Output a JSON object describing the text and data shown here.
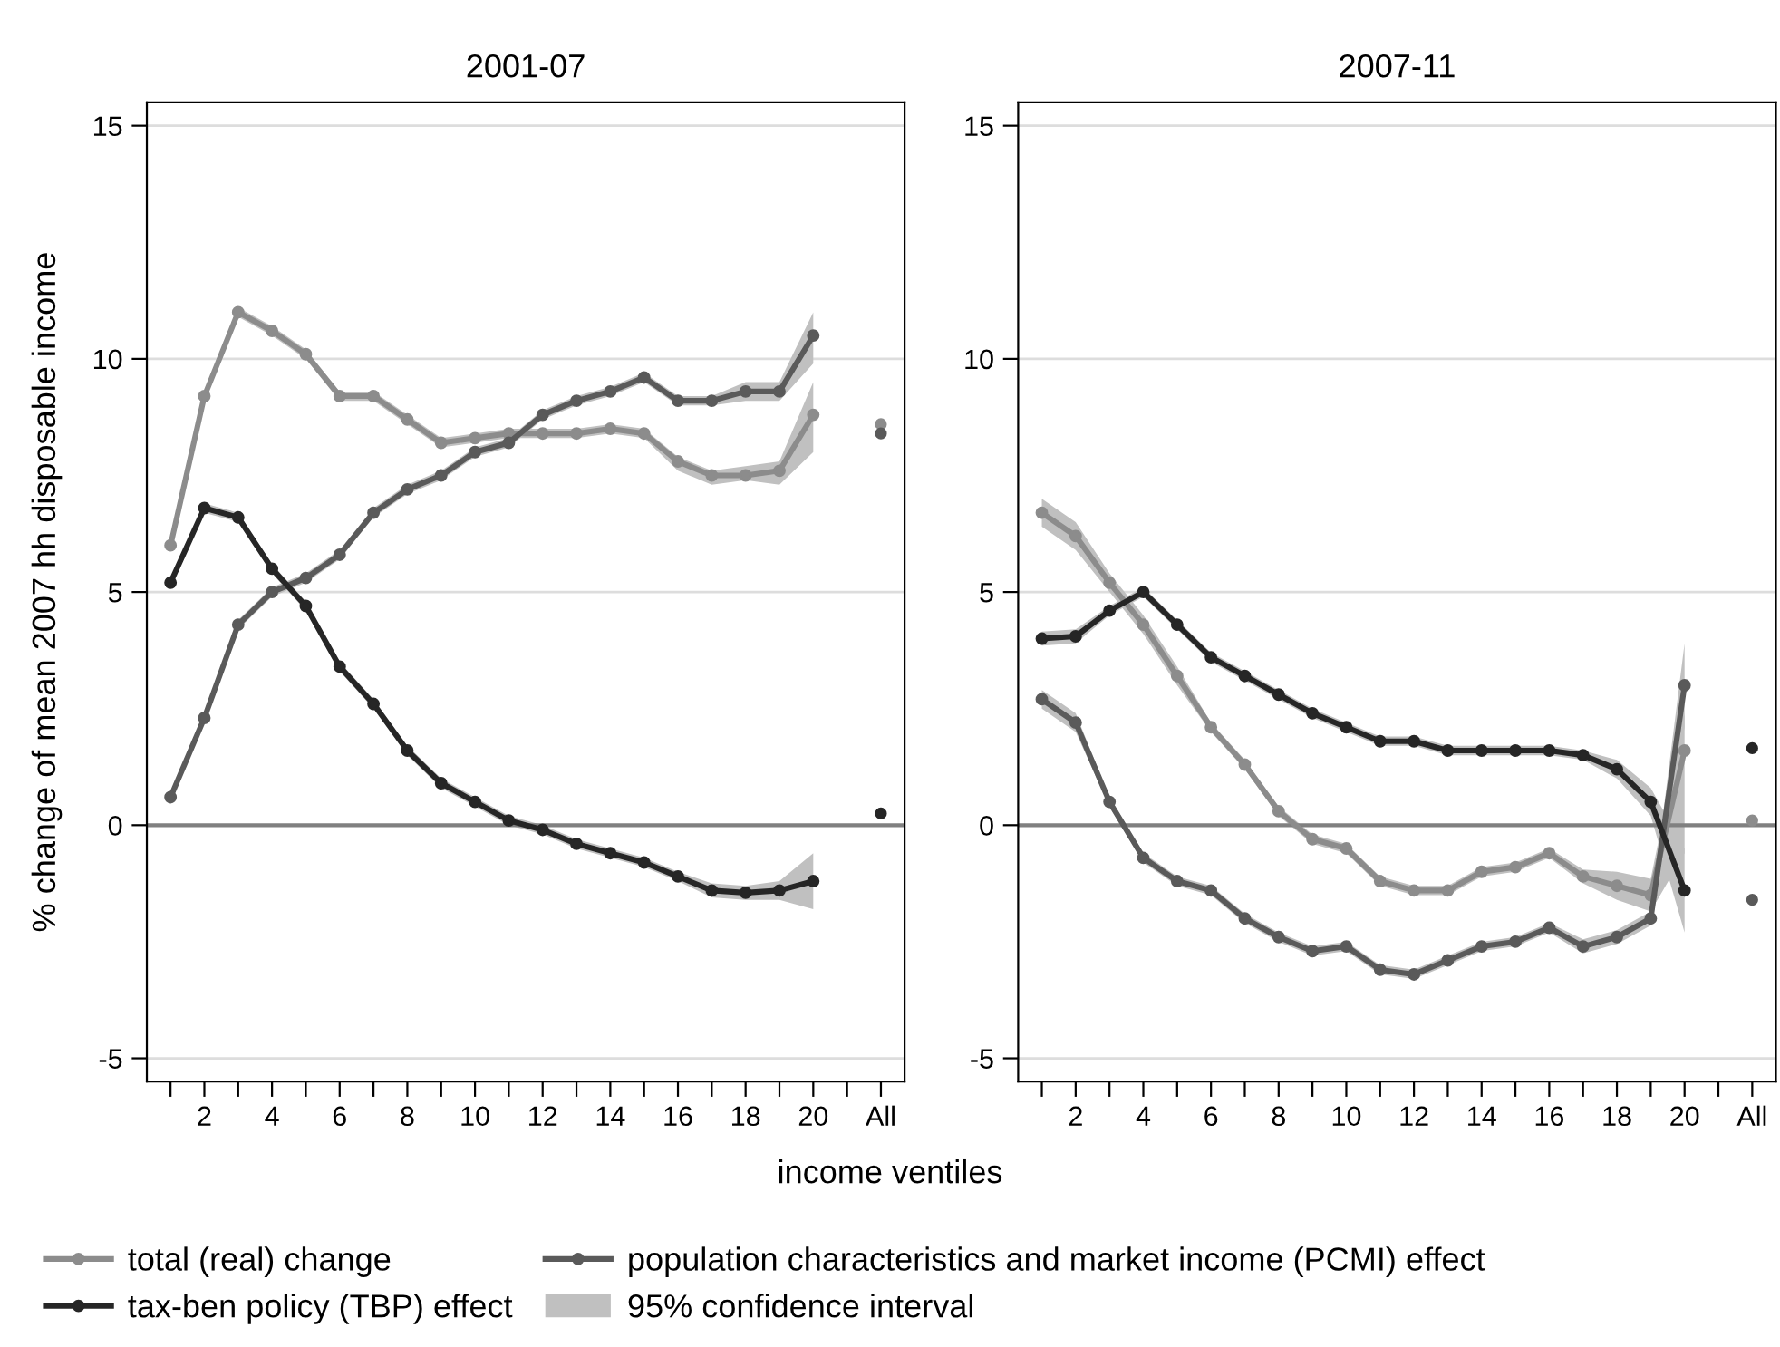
{
  "chart_data": [
    {
      "type": "line",
      "title": "2001-07",
      "ylabel": "% change of mean 2007 hh disposable income",
      "xlabel": "income ventiles",
      "xlim": [
        0.3,
        22.7
      ],
      "xticks": [
        {
          "value": 1,
          "label": null
        },
        2,
        {
          "value": 3,
          "label": null
        },
        4,
        {
          "value": 5,
          "label": null
        },
        6,
        {
          "value": 7,
          "label": null
        },
        8,
        {
          "value": 9,
          "label": null
        },
        10,
        {
          "value": 11,
          "label": null
        },
        12,
        {
          "value": 13,
          "label": null
        },
        14,
        {
          "value": 15,
          "label": null
        },
        16,
        {
          "value": 17,
          "label": null
        },
        18,
        {
          "value": 19,
          "label": null
        },
        20,
        {
          "value": 21,
          "label": null
        },
        {
          "value": 22,
          "label": "All"
        }
      ],
      "ylim": [
        -5.5,
        15.5
      ],
      "yticks": [
        -5,
        0,
        5,
        10,
        15
      ],
      "grid": "y",
      "legend": "bottom",
      "marker": "circle",
      "ref_lines": [
        {
          "axis": "y",
          "value": 0,
          "color": "#808080"
        }
      ],
      "series": [
        {
          "name": "total (real) change",
          "color": "#8c8c8c",
          "x": [
            1,
            2,
            3,
            4,
            5,
            6,
            7,
            8,
            9,
            10,
            11,
            12,
            13,
            14,
            15,
            16,
            17,
            18,
            19,
            20
          ],
          "values": [
            6.0,
            9.2,
            11.0,
            10.6,
            10.1,
            9.2,
            9.2,
            8.7,
            8.2,
            8.3,
            8.4,
            8.4,
            8.4,
            8.5,
            8.4,
            7.8,
            7.5,
            7.5,
            7.6,
            8.8
          ],
          "lower": [
            5.9,
            9.1,
            10.9,
            10.5,
            10.0,
            9.1,
            9.1,
            8.6,
            8.1,
            8.2,
            8.3,
            8.3,
            8.3,
            8.4,
            8.3,
            7.6,
            7.3,
            7.4,
            7.3,
            8.0
          ],
          "upper": [
            6.1,
            9.3,
            11.1,
            10.7,
            10.2,
            9.3,
            9.3,
            8.8,
            8.3,
            8.4,
            8.5,
            8.5,
            8.5,
            8.6,
            8.5,
            7.9,
            7.6,
            7.7,
            7.8,
            9.5
          ]
        },
        {
          "name": "population characteristics and market income (PCMI) effect",
          "color": "#5a5a5a",
          "x": [
            1,
            2,
            3,
            4,
            5,
            6,
            7,
            8,
            9,
            10,
            11,
            12,
            13,
            14,
            15,
            16,
            17,
            18,
            19,
            20
          ],
          "values": [
            0.6,
            2.3,
            4.3,
            5.0,
            5.3,
            5.8,
            6.7,
            7.2,
            7.5,
            8.0,
            8.2,
            8.8,
            9.1,
            9.3,
            9.6,
            9.1,
            9.1,
            9.3,
            9.3,
            10.5
          ],
          "lower": [
            0.5,
            2.2,
            4.2,
            4.9,
            5.2,
            5.7,
            6.6,
            7.1,
            7.4,
            7.9,
            8.1,
            8.7,
            9.0,
            9.2,
            9.5,
            9.0,
            9.0,
            9.1,
            9.1,
            9.9
          ],
          "upper": [
            0.7,
            2.4,
            4.4,
            5.1,
            5.4,
            5.9,
            6.8,
            7.3,
            7.6,
            8.1,
            8.3,
            8.9,
            9.2,
            9.4,
            9.7,
            9.2,
            9.2,
            9.5,
            9.5,
            11.0
          ]
        },
        {
          "name": "tax-ben policy (TBP) effect",
          "color": "#262626",
          "x": [
            1,
            2,
            3,
            4,
            5,
            6,
            7,
            8,
            9,
            10,
            11,
            12,
            13,
            14,
            15,
            16,
            17,
            18,
            19,
            20
          ],
          "values": [
            5.2,
            6.8,
            6.6,
            5.5,
            4.7,
            3.4,
            2.6,
            1.6,
            0.9,
            0.5,
            0.1,
            -0.1,
            -0.4,
            -0.6,
            -0.8,
            -1.1,
            -1.4,
            -1.45,
            -1.4,
            -1.2
          ],
          "lower": [
            5.1,
            6.7,
            6.5,
            5.4,
            4.6,
            3.3,
            2.5,
            1.5,
            0.8,
            0.4,
            0.0,
            -0.2,
            -0.5,
            -0.7,
            -0.9,
            -1.2,
            -1.55,
            -1.6,
            -1.6,
            -1.8
          ],
          "upper": [
            5.3,
            6.9,
            6.7,
            5.6,
            4.8,
            3.5,
            2.7,
            1.7,
            1.0,
            0.6,
            0.2,
            0.0,
            -0.3,
            -0.5,
            -0.7,
            -1.0,
            -1.25,
            -1.3,
            -1.2,
            -0.6
          ]
        },
        {
          "type": "scatter",
          "color": "#8c8c8c",
          "x": [
            22
          ],
          "values": [
            8.6
          ]
        },
        {
          "type": "scatter",
          "color": "#5a5a5a",
          "x": [
            22
          ],
          "values": [
            8.4
          ]
        },
        {
          "type": "scatter",
          "color": "#262626",
          "x": [
            22
          ],
          "values": [
            0.25
          ]
        },
        {
          "type": "area",
          "name": "95% confidence interval",
          "color": "#c0c0c0"
        }
      ]
    },
    {
      "type": "line",
      "title": "2007-11",
      "xlim": [
        0.3,
        22.7
      ],
      "xticks": [
        {
          "value": 1,
          "label": null
        },
        2,
        {
          "value": 3,
          "label": null
        },
        4,
        {
          "value": 5,
          "label": null
        },
        6,
        {
          "value": 7,
          "label": null
        },
        8,
        {
          "value": 9,
          "label": null
        },
        10,
        {
          "value": 11,
          "label": null
        },
        12,
        {
          "value": 13,
          "label": null
        },
        14,
        {
          "value": 15,
          "label": null
        },
        16,
        {
          "value": 17,
          "label": null
        },
        18,
        {
          "value": 19,
          "label": null
        },
        20,
        {
          "value": 21,
          "label": null
        },
        {
          "value": 22,
          "label": "All"
        }
      ],
      "ylim": [
        -5.5,
        15.5
      ],
      "yticks": [
        -5,
        0,
        5,
        10,
        15
      ],
      "grid": "y",
      "marker": "circle",
      "ref_lines": [
        {
          "axis": "y",
          "value": 0,
          "color": "#808080"
        }
      ],
      "series": [
        {
          "color": "#8c8c8c",
          "x": [
            1,
            2,
            3,
            4,
            5,
            6,
            7,
            8,
            9,
            10,
            11,
            12,
            13,
            14,
            15,
            16,
            17,
            18,
            19,
            20
          ],
          "values": [
            6.7,
            6.2,
            5.2,
            4.3,
            3.2,
            2.1,
            1.3,
            0.3,
            -0.3,
            -0.5,
            -1.2,
            -1.4,
            -1.4,
            -1.0,
            -0.9,
            -0.6,
            -1.1,
            -1.3,
            -1.5,
            1.6
          ],
          "lower": [
            6.4,
            5.9,
            5.0,
            4.1,
            3.0,
            2.0,
            1.2,
            0.2,
            -0.4,
            -0.6,
            -1.3,
            -1.5,
            -1.5,
            -1.1,
            -1.0,
            -0.7,
            -1.25,
            -1.6,
            -1.85,
            -0.6
          ],
          "upper": [
            7.0,
            6.5,
            5.4,
            4.5,
            3.4,
            2.2,
            1.4,
            0.4,
            -0.2,
            -0.4,
            -1.1,
            -1.3,
            -1.3,
            -0.9,
            -0.8,
            -0.5,
            -0.95,
            -1.0,
            -1.15,
            2.4
          ]
        },
        {
          "color": "#5a5a5a",
          "x": [
            1,
            2,
            3,
            4,
            5,
            6,
            7,
            8,
            9,
            10,
            11,
            12,
            13,
            14,
            15,
            16,
            17,
            18,
            19,
            20
          ],
          "values": [
            2.7,
            2.2,
            0.5,
            -0.7,
            -1.2,
            -1.4,
            -2.0,
            -2.4,
            -2.7,
            -2.6,
            -3.1,
            -3.2,
            -2.9,
            -2.6,
            -2.5,
            -2.2,
            -2.6,
            -2.4,
            -2.0,
            3.0
          ],
          "lower": [
            2.5,
            2.0,
            0.4,
            -0.8,
            -1.3,
            -1.5,
            -2.1,
            -2.5,
            -2.8,
            -2.7,
            -3.2,
            -3.3,
            -3.0,
            -2.7,
            -2.6,
            -2.3,
            -2.75,
            -2.55,
            -2.15,
            2.1
          ],
          "upper": [
            2.9,
            2.4,
            0.6,
            -0.6,
            -1.1,
            -1.3,
            -1.9,
            -2.3,
            -2.6,
            -2.5,
            -3.0,
            -3.1,
            -2.8,
            -2.5,
            -2.4,
            -2.1,
            -2.45,
            -2.25,
            -1.85,
            3.9
          ]
        },
        {
          "color": "#262626",
          "x": [
            1,
            2,
            3,
            4,
            5,
            6,
            7,
            8,
            9,
            10,
            11,
            12,
            13,
            14,
            15,
            16,
            17,
            18,
            19,
            20
          ],
          "values": [
            4.0,
            4.05,
            4.6,
            5.0,
            4.3,
            3.6,
            3.2,
            2.8,
            2.4,
            2.1,
            1.8,
            1.8,
            1.6,
            1.6,
            1.6,
            1.6,
            1.5,
            1.2,
            0.5,
            -1.4
          ],
          "lower": [
            3.85,
            3.9,
            4.5,
            4.9,
            4.2,
            3.5,
            3.1,
            2.7,
            2.3,
            2.0,
            1.7,
            1.7,
            1.5,
            1.5,
            1.5,
            1.5,
            1.4,
            1.0,
            0.2,
            -2.3
          ],
          "upper": [
            4.15,
            4.2,
            4.7,
            5.1,
            4.4,
            3.7,
            3.3,
            2.9,
            2.5,
            2.2,
            1.9,
            1.9,
            1.7,
            1.7,
            1.7,
            1.7,
            1.6,
            1.4,
            0.8,
            -0.5
          ]
        },
        {
          "type": "scatter",
          "color": "#8c8c8c",
          "x": [
            22
          ],
          "values": [
            0.1
          ]
        },
        {
          "type": "scatter",
          "color": "#5a5a5a",
          "x": [
            22
          ],
          "values": [
            -1.6
          ]
        },
        {
          "type": "scatter",
          "color": "#262626",
          "x": [
            22
          ],
          "values": [
            1.65
          ]
        }
      ]
    }
  ]
}
